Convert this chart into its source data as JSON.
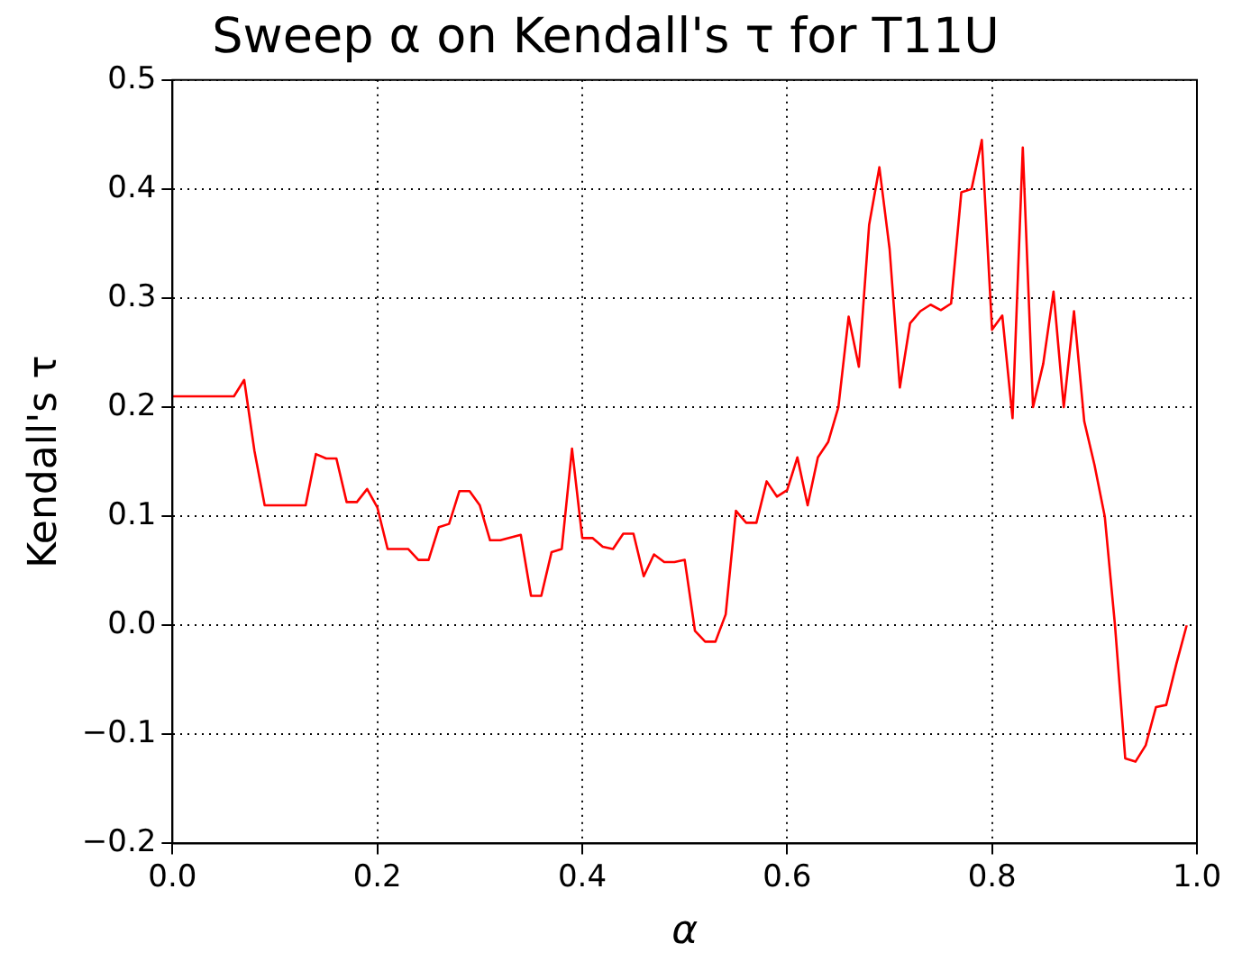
{
  "chart_data": {
    "type": "line",
    "title": "Sweep α on Kendall's τ for T11U",
    "xlabel": "α",
    "ylabel": "Kendall's τ",
    "xlim": [
      0,
      1
    ],
    "ylim": [
      -0.2,
      0.5
    ],
    "xticks": [
      {
        "value": 0,
        "label": "0.0"
      },
      {
        "value": 0.2,
        "label": "0.2"
      },
      {
        "value": 0.4,
        "label": "0.4"
      },
      {
        "value": 0.6,
        "label": "0.6"
      },
      {
        "value": 0.8,
        "label": "0.8"
      },
      {
        "value": 1,
        "label": "1.0"
      }
    ],
    "yticks": [
      {
        "value": -0.2,
        "label": "−0.2"
      },
      {
        "value": -0.1,
        "label": "−0.1"
      },
      {
        "value": 0,
        "label": "0.0"
      },
      {
        "value": 0.1,
        "label": "0.1"
      },
      {
        "value": 0.2,
        "label": "0.2"
      },
      {
        "value": 0.3,
        "label": "0.3"
      },
      {
        "value": 0.4,
        "label": "0.4"
      },
      {
        "value": 0.5,
        "label": "0.5"
      }
    ],
    "grid": true,
    "legend": false,
    "x": [
      0,
      0.06,
      0.07,
      0.08,
      0.09,
      0.13,
      0.14,
      0.15,
      0.16,
      0.17,
      0.18,
      0.19,
      0.2,
      0.21,
      0.23,
      0.24,
      0.25,
      0.26,
      0.27,
      0.28,
      0.29,
      0.3,
      0.31,
      0.32,
      0.34,
      0.35,
      0.36,
      0.37,
      0.38,
      0.39,
      0.4,
      0.41,
      0.42,
      0.43,
      0.44,
      0.45,
      0.46,
      0.47,
      0.48,
      0.49,
      0.5,
      0.51,
      0.52,
      0.53,
      0.54,
      0.55,
      0.56,
      0.57,
      0.58,
      0.59,
      0.6,
      0.61,
      0.62,
      0.63,
      0.64,
      0.65,
      0.66,
      0.67,
      0.68,
      0.69,
      0.7,
      0.71,
      0.72,
      0.73,
      0.74,
      0.75,
      0.76,
      0.77,
      0.78,
      0.79,
      0.8,
      0.81,
      0.82,
      0.83,
      0.84,
      0.85,
      0.86,
      0.87,
      0.88,
      0.89,
      0.9,
      0.91,
      0.92,
      0.93,
      0.94,
      0.95,
      0.96,
      0.97,
      0.98,
      0.99
    ],
    "series": [
      {
        "color": "#ff0000",
        "values": [
          0.21,
          0.21,
          0.225,
          0.16,
          0.11,
          0.11,
          0.157,
          0.153,
          0.153,
          0.113,
          0.113,
          0.125,
          0.108,
          0.07,
          0.07,
          0.06,
          0.06,
          0.09,
          0.093,
          0.123,
          0.123,
          0.11,
          0.078,
          0.078,
          0.083,
          0.027,
          0.027,
          0.067,
          0.07,
          0.162,
          0.08,
          0.08,
          0.072,
          0.07,
          0.084,
          0.084,
          0.045,
          0.065,
          0.058,
          0.058,
          0.06,
          -0.005,
          -0.015,
          -0.015,
          0.01,
          0.105,
          0.094,
          0.094,
          0.132,
          0.118,
          0.124,
          0.154,
          0.11,
          0.154,
          0.168,
          0.2,
          0.283,
          0.237,
          0.367,
          0.42,
          0.345,
          0.218,
          0.277,
          0.288,
          0.294,
          0.289,
          0.295,
          0.397,
          0.4,
          0.445,
          0.271,
          0.284,
          0.19,
          0.438,
          0.2,
          0.24,
          0.306,
          0.2,
          0.288,
          0.187,
          0.147,
          0.1,
          0.0,
          -0.122,
          -0.125,
          -0.11,
          -0.075,
          -0.073,
          -0.035,
          0.0
        ]
      }
    ]
  }
}
